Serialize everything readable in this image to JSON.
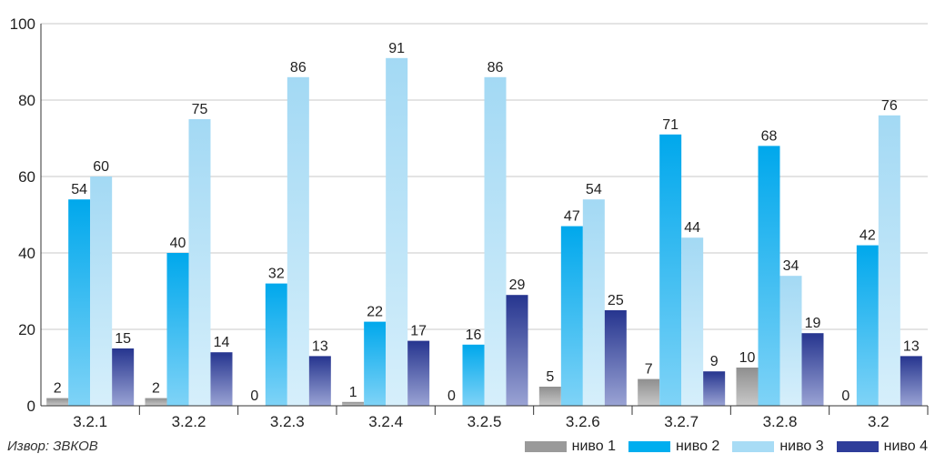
{
  "chart_data": {
    "type": "bar",
    "categories": [
      "3.2.1",
      "3.2.2",
      "3.2.3",
      "3.2.4",
      "3.2.5",
      "3.2.6",
      "3.2.7",
      "3.2.8",
      "3.2"
    ],
    "series": [
      {
        "name": "ниво 1",
        "color": "#9a9a9a",
        "values": [
          2,
          2,
          0,
          1,
          0,
          5,
          7,
          10,
          0
        ]
      },
      {
        "name": "ниво 2",
        "color": "#00aeef",
        "values": [
          54,
          40,
          32,
          22,
          16,
          47,
          71,
          68,
          42
        ]
      },
      {
        "name": "ниво 3",
        "color": "#a8dcf5",
        "values": [
          60,
          75,
          86,
          91,
          86,
          54,
          44,
          34,
          76
        ]
      },
      {
        "name": "ниво 4",
        "color": "#2e3d9a",
        "values": [
          15,
          14,
          13,
          17,
          29,
          25,
          9,
          19,
          13
        ]
      }
    ],
    "yticks": [
      "0",
      "20",
      "40",
      "60",
      "80",
      "100"
    ],
    "ylim": [
      0,
      100
    ],
    "grid": true,
    "legend_position": "bottom-right",
    "source": "Извор: ЗВКОВ"
  }
}
